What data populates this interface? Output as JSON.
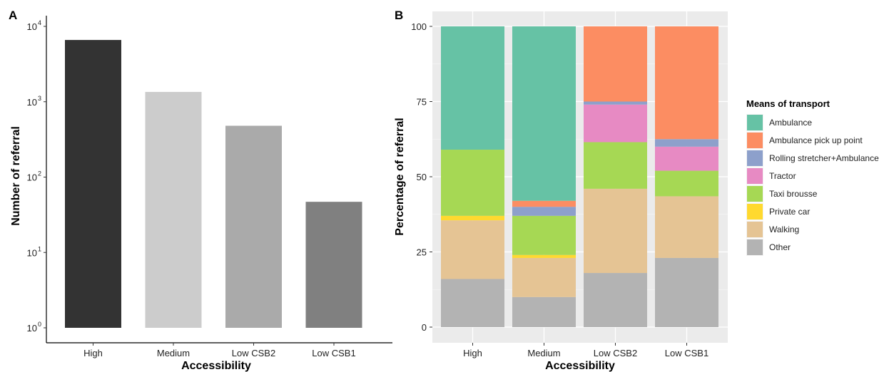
{
  "panels": {
    "a_label": "A",
    "b_label": "B"
  },
  "chart_data": [
    {
      "type": "bar",
      "panel": "A",
      "xlabel": "Accessibility",
      "ylabel": "Number of referral",
      "categories": [
        "High",
        "Medium",
        "Low CSB2",
        "Low CSB1"
      ],
      "values": [
        6600,
        1350,
        480,
        47
      ],
      "colors": [
        "#333333",
        "#cccccc",
        "#aaaaaa",
        "#808080"
      ],
      "y_scale": "log10",
      "ylim": [
        1,
        10000
      ],
      "y_ticks": [
        {
          "value": 1,
          "base": "10",
          "exp": "0"
        },
        {
          "value": 10,
          "base": "10",
          "exp": "1"
        },
        {
          "value": 100,
          "base": "10",
          "exp": "2"
        },
        {
          "value": 1000,
          "base": "10",
          "exp": "3"
        },
        {
          "value": 10000,
          "base": "10",
          "exp": "4"
        }
      ],
      "grid": false
    },
    {
      "type": "bar",
      "stacked": true,
      "panel": "B",
      "xlabel": "Accessibility",
      "ylabel": "Percentage of referral",
      "categories": [
        "High",
        "Medium",
        "Low CSB2",
        "Low CSB1"
      ],
      "ylim": [
        0,
        100
      ],
      "y_ticks": [
        "0",
        "25",
        "50",
        "75",
        "100"
      ],
      "grid": true,
      "legend_title": "Means of transport",
      "legend_position": "right",
      "stack_order": [
        "Other",
        "Walking",
        "Private car",
        "Taxi brousse",
        "Tractor",
        "Rolling stretcher+Ambulance",
        "Ambulance pick up point",
        "Ambulance"
      ],
      "series": [
        {
          "name": "Ambulance",
          "color": "#66c2a5",
          "values": [
            41,
            58,
            0,
            0
          ]
        },
        {
          "name": "Ambulance pick up point",
          "color": "#fc8d62",
          "values": [
            0,
            2,
            25,
            37.5
          ]
        },
        {
          "name": "Rolling stretcher+Ambulance",
          "color": "#8da0cb",
          "values": [
            0,
            3,
            1,
            2.5
          ]
        },
        {
          "name": "Tractor",
          "color": "#e78ac3",
          "values": [
            0,
            0,
            12.5,
            8
          ]
        },
        {
          "name": "Taxi brousse",
          "color": "#a6d854",
          "values": [
            22,
            13,
            15.5,
            8.5
          ]
        },
        {
          "name": "Private car",
          "color": "#ffd92f",
          "values": [
            1.5,
            1,
            0,
            0
          ]
        },
        {
          "name": "Walking",
          "color": "#e5c494",
          "values": [
            19.5,
            13,
            28,
            20.5
          ]
        },
        {
          "name": "Other",
          "color": "#b3b3b3",
          "values": [
            16,
            10,
            18,
            23
          ]
        }
      ]
    }
  ]
}
